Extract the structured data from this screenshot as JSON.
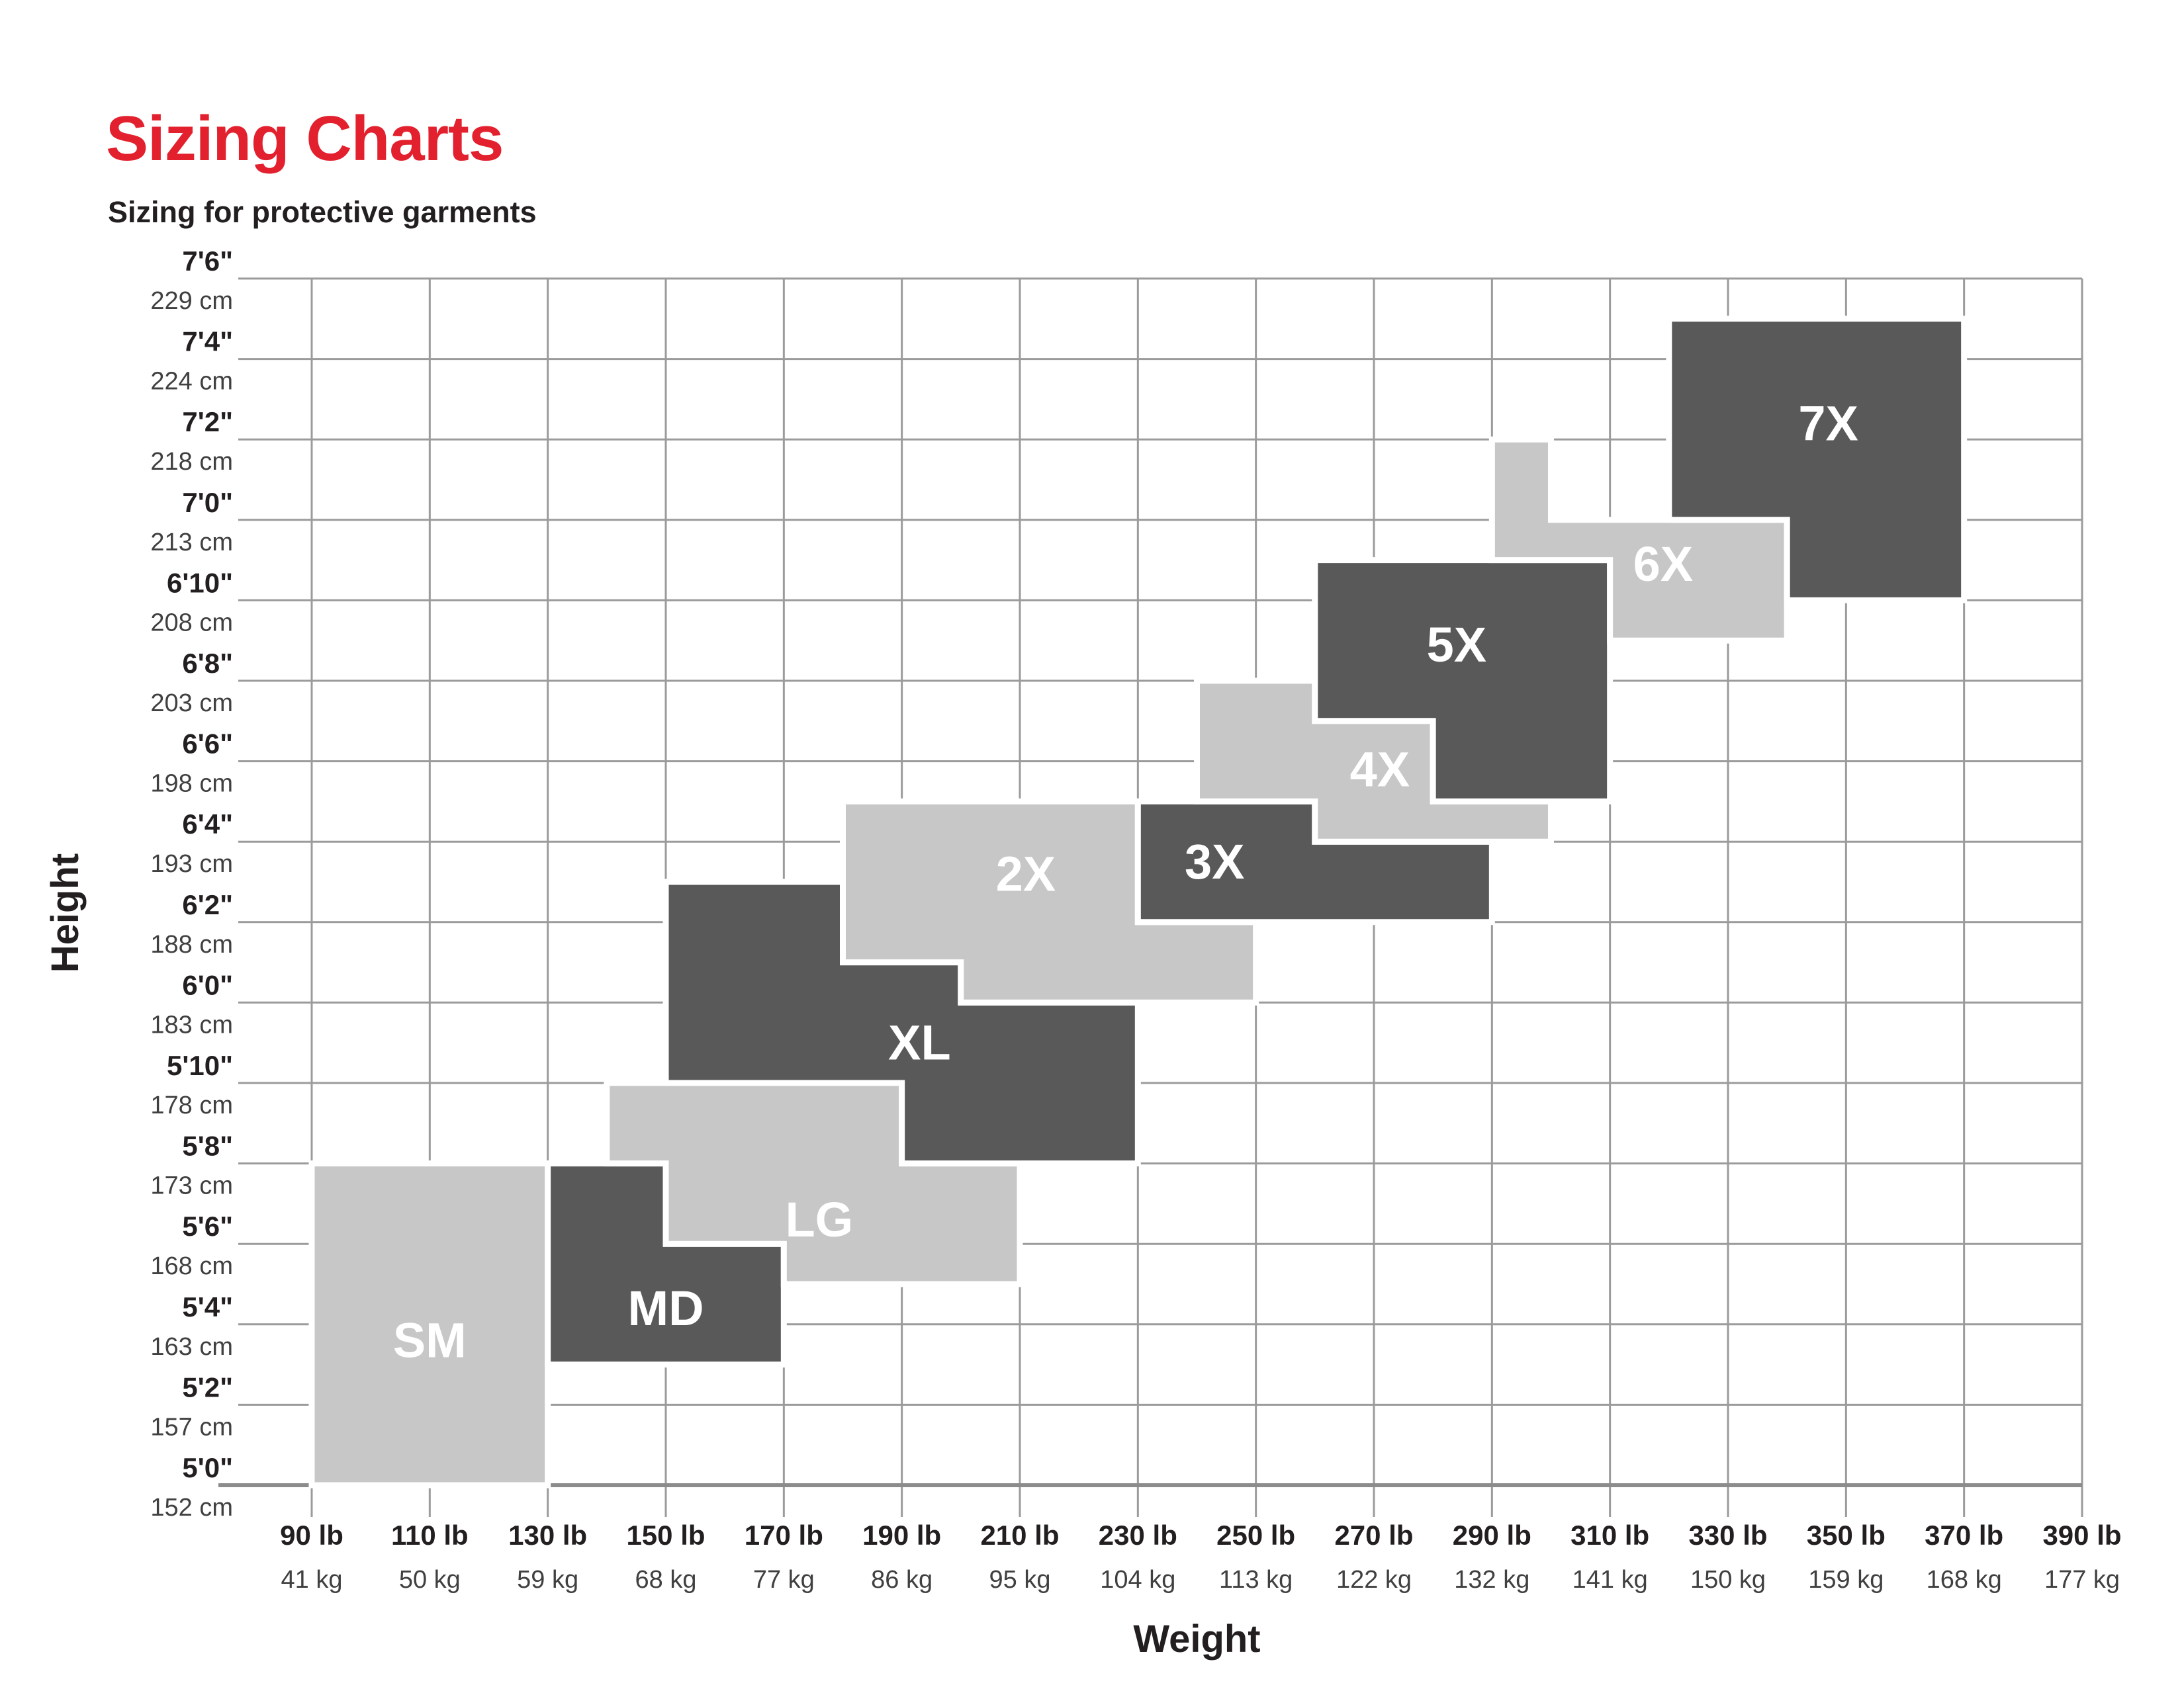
{
  "title": "Sizing Charts",
  "subtitle": "Sizing for protective garments",
  "colors": {
    "title_red": "#E2202E",
    "subtitle_text": "#231F20",
    "block_light": "#C7C7C7",
    "block_dark": "#595959",
    "block_label_text": "#FFFFFF",
    "grid_line": "#9B9B9B",
    "axis_line": "#8C8C8C",
    "tick_primary_text": "#231F20",
    "tick_secondary_text": "#404040"
  },
  "chart_data": {
    "type": "heatmap",
    "title": "Sizing Charts",
    "subtitle": "Sizing for protective garments",
    "xlabel": "Weight",
    "ylabel": "Height",
    "x_unit_primary": "lb",
    "x_unit_secondary": "kg",
    "y_unit_primary": "ft-in",
    "y_unit_secondary": "cm",
    "x_axis_lb": [
      90,
      110,
      130,
      150,
      170,
      190,
      210,
      230,
      250,
      270,
      290,
      310,
      330,
      350,
      370,
      390
    ],
    "x_ticks": [
      {
        "lb_label": "90 lb",
        "kg_label": "41 kg",
        "lb": 90
      },
      {
        "lb_label": "110 lb",
        "kg_label": "50 kg",
        "lb": 110
      },
      {
        "lb_label": "130 lb",
        "kg_label": "59 kg",
        "lb": 130
      },
      {
        "lb_label": "150 lb",
        "kg_label": "68 kg",
        "lb": 150
      },
      {
        "lb_label": "170 lb",
        "kg_label": "77 kg",
        "lb": 170
      },
      {
        "lb_label": "190 lb",
        "kg_label": "86 kg",
        "lb": 190
      },
      {
        "lb_label": "210 lb",
        "kg_label": "95 kg",
        "lb": 210
      },
      {
        "lb_label": "230 lb",
        "kg_label": "104 kg",
        "lb": 230
      },
      {
        "lb_label": "250 lb",
        "kg_label": "113 kg",
        "lb": 250
      },
      {
        "lb_label": "270 lb",
        "kg_label": "122 kg",
        "lb": 270
      },
      {
        "lb_label": "290 lb",
        "kg_label": "132 kg",
        "lb": 290
      },
      {
        "lb_label": "310 lb",
        "kg_label": "141 kg",
        "lb": 310
      },
      {
        "lb_label": "330 lb",
        "kg_label": "150 kg",
        "lb": 330
      },
      {
        "lb_label": "350 lb",
        "kg_label": "159 kg",
        "lb": 350
      },
      {
        "lb_label": "370 lb",
        "kg_label": "168 kg",
        "lb": 370
      },
      {
        "lb_label": "390 lb",
        "kg_label": "177 kg",
        "lb": 390
      }
    ],
    "y_ticks": [
      {
        "imperial": "5'0\"",
        "metric": "152 cm",
        "inches": 60
      },
      {
        "imperial": "5'2\"",
        "metric": "157 cm",
        "inches": 62
      },
      {
        "imperial": "5'4\"",
        "metric": "163 cm",
        "inches": 64
      },
      {
        "imperial": "5'6\"",
        "metric": "168 cm",
        "inches": 66
      },
      {
        "imperial": "5'8\"",
        "metric": "173 cm",
        "inches": 68
      },
      {
        "imperial": "5'10\"",
        "metric": "178 cm",
        "inches": 70
      },
      {
        "imperial": "6'0\"",
        "metric": "183 cm",
        "inches": 72
      },
      {
        "imperial": "6'2\"",
        "metric": "188 cm",
        "inches": 74
      },
      {
        "imperial": "6'4\"",
        "metric": "193 cm",
        "inches": 76
      },
      {
        "imperial": "6'6\"",
        "metric": "198 cm",
        "inches": 78
      },
      {
        "imperial": "6'8\"",
        "metric": "203 cm",
        "inches": 80
      },
      {
        "imperial": "6'10\"",
        "metric": "208 cm",
        "inches": 82
      },
      {
        "imperial": "7'0\"",
        "metric": "213 cm",
        "inches": 84
      },
      {
        "imperial": "7'2\"",
        "metric": "218 cm",
        "inches": 86
      },
      {
        "imperial": "7'4\"",
        "metric": "224 cm",
        "inches": 88
      },
      {
        "imperial": "7'6\"",
        "metric": "229 cm",
        "inches": 90
      }
    ],
    "xlim_lb": [
      90,
      390
    ],
    "ylim_inches": [
      60,
      90
    ],
    "grid": true,
    "sizes": [
      {
        "name": "SM",
        "shade": "light",
        "label_at": [
          110,
          63.6
        ],
        "polygon": [
          [
            90,
            60
          ],
          [
            130,
            60
          ],
          [
            130,
            68
          ],
          [
            90,
            68
          ]
        ]
      },
      {
        "name": "MD",
        "shade": "dark",
        "label_at": [
          150,
          64.4
        ],
        "polygon": [
          [
            130,
            68
          ],
          [
            150,
            68
          ],
          [
            150,
            66
          ],
          [
            170,
            66
          ],
          [
            170,
            63
          ],
          [
            130,
            63
          ]
        ]
      },
      {
        "name": "LG",
        "shade": "light",
        "label_at": [
          176,
          66.6
        ],
        "polygon": [
          [
            140,
            70
          ],
          [
            190,
            70
          ],
          [
            190,
            68
          ],
          [
            210,
            68
          ],
          [
            210,
            65
          ],
          [
            170,
            65
          ],
          [
            170,
            66
          ],
          [
            150,
            66
          ],
          [
            150,
            68
          ],
          [
            140,
            68
          ]
        ]
      },
      {
        "name": "XL",
        "shade": "dark",
        "label_at": [
          193,
          71.0
        ],
        "polygon": [
          [
            150,
            75
          ],
          [
            180,
            75
          ],
          [
            180,
            73
          ],
          [
            200,
            73
          ],
          [
            200,
            72
          ],
          [
            230,
            72
          ],
          [
            230,
            68
          ],
          [
            190,
            68
          ],
          [
            190,
            70
          ],
          [
            150,
            70
          ]
        ]
      },
      {
        "name": "2X",
        "shade": "light",
        "label_at": [
          211,
          75.2
        ],
        "polygon": [
          [
            180,
            77
          ],
          [
            230,
            77
          ],
          [
            230,
            74
          ],
          [
            250,
            74
          ],
          [
            250,
            72
          ],
          [
            200,
            72
          ],
          [
            200,
            73
          ],
          [
            180,
            73
          ]
        ]
      },
      {
        "name": "3X",
        "shade": "dark",
        "label_at": [
          243,
          75.5
        ],
        "polygon": [
          [
            230,
            77
          ],
          [
            260,
            77
          ],
          [
            260,
            76
          ],
          [
            290,
            76
          ],
          [
            290,
            74
          ],
          [
            230,
            74
          ]
        ]
      },
      {
        "name": "4X",
        "shade": "light",
        "label_at": [
          271,
          77.8
        ],
        "polygon": [
          [
            240,
            80
          ],
          [
            260,
            80
          ],
          [
            260,
            79
          ],
          [
            280,
            79
          ],
          [
            280,
            77
          ],
          [
            300,
            77
          ],
          [
            300,
            76
          ],
          [
            260,
            76
          ],
          [
            260,
            77
          ],
          [
            240,
            77
          ]
        ]
      },
      {
        "name": "5X",
        "shade": "dark",
        "label_at": [
          284,
          80.9
        ],
        "polygon": [
          [
            260,
            83
          ],
          [
            310,
            83
          ],
          [
            310,
            77
          ],
          [
            280,
            77
          ],
          [
            280,
            79
          ],
          [
            260,
            79
          ]
        ]
      },
      {
        "name": "6X",
        "shade": "light",
        "label_at": [
          319,
          82.9
        ],
        "polygon": [
          [
            290,
            86
          ],
          [
            300,
            86
          ],
          [
            300,
            84
          ],
          [
            340,
            84
          ],
          [
            340,
            81
          ],
          [
            310,
            81
          ],
          [
            310,
            83
          ],
          [
            290,
            83
          ]
        ]
      },
      {
        "name": "7X",
        "shade": "dark",
        "label_at": [
          347,
          86.4
        ],
        "polygon": [
          [
            320,
            89
          ],
          [
            370,
            89
          ],
          [
            370,
            82
          ],
          [
            340,
            82
          ],
          [
            340,
            84
          ],
          [
            320,
            84
          ]
        ]
      }
    ]
  }
}
